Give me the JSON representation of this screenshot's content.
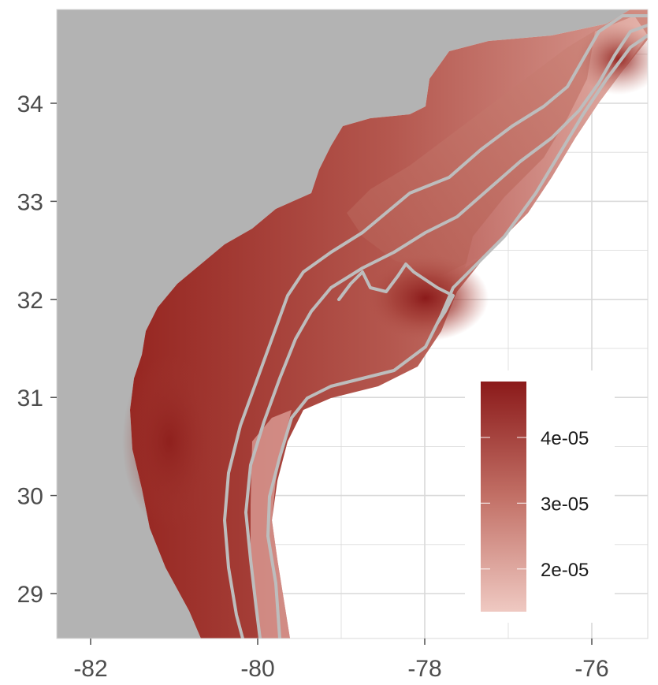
{
  "map": {
    "x_axis": {
      "ticks": [
        {
          "value": -82,
          "label": "-82"
        },
        {
          "value": -80,
          "label": "-80"
        },
        {
          "value": -78,
          "label": "-78"
        },
        {
          "value": -76,
          "label": "-76"
        }
      ]
    },
    "y_axis": {
      "ticks": [
        {
          "value": 29,
          "label": "29"
        },
        {
          "value": 30,
          "label": "30"
        },
        {
          "value": 31,
          "label": "31"
        },
        {
          "value": 32,
          "label": "32"
        },
        {
          "value": 33,
          "label": "33"
        },
        {
          "value": 34,
          "label": "34"
        }
      ]
    },
    "legend": {
      "labels": [
        {
          "value": 4e-05,
          "label": "4e-05"
        },
        {
          "value": 3e-05,
          "label": "3e-05"
        },
        {
          "value": 2e-05,
          "label": "2e-05"
        }
      ],
      "color_high": "#8b1a1a",
      "color_low": "#efc9c2",
      "placement": "inside bottom-right"
    },
    "colors": {
      "land": "#b3b3b3",
      "panel": "#ffffff",
      "grid": "#d9d9d9",
      "contours": "#bdbdbd"
    }
  }
}
